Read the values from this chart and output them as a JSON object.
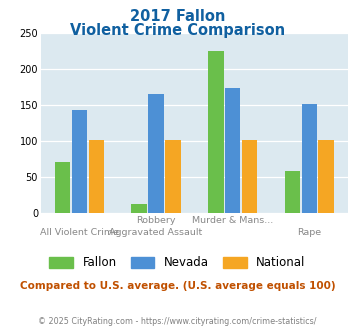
{
  "title_line1": "2017 Fallon",
  "title_line2": "Violent Crime Comparison",
  "top_labels": [
    "",
    "Robbery",
    "Murder & Mans...",
    ""
  ],
  "bottom_labels": [
    "All Violent Crime",
    "Aggravated Assault",
    "",
    "Rape"
  ],
  "fallon": [
    70,
    12,
    225,
    58
  ],
  "nevada": [
    143,
    165,
    174,
    152
  ],
  "national": [
    101,
    101,
    101,
    101
  ],
  "fallon_color": "#6abf4b",
  "nevada_color": "#4d90d5",
  "national_color": "#f5a623",
  "ylim": [
    0,
    250
  ],
  "yticks": [
    0,
    50,
    100,
    150,
    200,
    250
  ],
  "plot_bg": "#dce9f0",
  "title_color": "#1060a0",
  "subtitle_note": "Compared to U.S. average. (U.S. average equals 100)",
  "footer": "© 2025 CityRating.com - https://www.cityrating.com/crime-statistics/",
  "subtitle_color": "#c05000",
  "footer_color": "#808080",
  "label_color": "#888888"
}
